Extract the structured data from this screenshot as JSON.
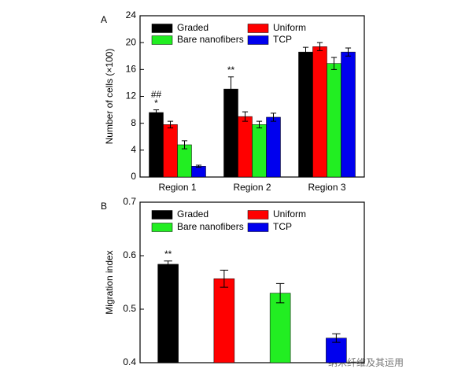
{
  "chart_data": [
    {
      "type": "bar",
      "panel": "A",
      "ylabel": "Number of cells (×100)",
      "categories": [
        "Region 1",
        "Region 2",
        "Region 3"
      ],
      "series": [
        {
          "name": "Graded",
          "color": "#000000",
          "values": [
            9.6,
            13.1,
            18.6
          ],
          "errors": [
            0.4,
            1.8,
            0.7
          ]
        },
        {
          "name": "Uniform",
          "color": "#ff0000",
          "values": [
            7.8,
            9.0,
            19.4
          ],
          "errors": [
            0.5,
            0.7,
            0.6
          ]
        },
        {
          "name": "Bare nanofibers",
          "color": "#22ee22",
          "values": [
            4.8,
            7.8,
            16.9
          ],
          "errors": [
            0.6,
            0.5,
            0.9
          ]
        },
        {
          "name": "TCP",
          "color": "#0000ee",
          "values": [
            1.6,
            8.9,
            18.6
          ],
          "errors": [
            0.15,
            0.6,
            0.6
          ]
        }
      ],
      "annotations": [
        {
          "text": "*",
          "series": 0,
          "category": 0
        },
        {
          "text": "##",
          "series": 0,
          "category": 0
        },
        {
          "text": "**",
          "series": 0,
          "category": 1
        }
      ],
      "ylim": [
        0,
        24
      ],
      "yticks": [
        0,
        4,
        8,
        12,
        16,
        20,
        24
      ],
      "legend": "top"
    },
    {
      "type": "bar",
      "panel": "B",
      "ylabel": "Migration index",
      "categories": [
        null
      ],
      "series": [
        {
          "name": "Graded",
          "color": "#000000",
          "values": [
            0.584
          ],
          "errors": [
            0.006
          ]
        },
        {
          "name": "Uniform",
          "color": "#ff0000",
          "values": [
            0.557
          ],
          "errors": [
            0.016
          ]
        },
        {
          "name": "Bare nanofibers",
          "color": "#22ee22",
          "values": [
            0.53
          ],
          "errors": [
            0.018
          ]
        },
        {
          "name": "TCP",
          "color": "#0000ee",
          "values": [
            0.446
          ],
          "errors": [
            0.008
          ]
        }
      ],
      "annotations": [
        {
          "text": "**",
          "series": 0,
          "category": 0
        }
      ],
      "ylim": [
        0.4,
        0.7
      ],
      "yticks": [
        0.4,
        0.5,
        0.6,
        0.7
      ],
      "legend": "top"
    }
  ],
  "watermark": "纳米纤维及其运用"
}
